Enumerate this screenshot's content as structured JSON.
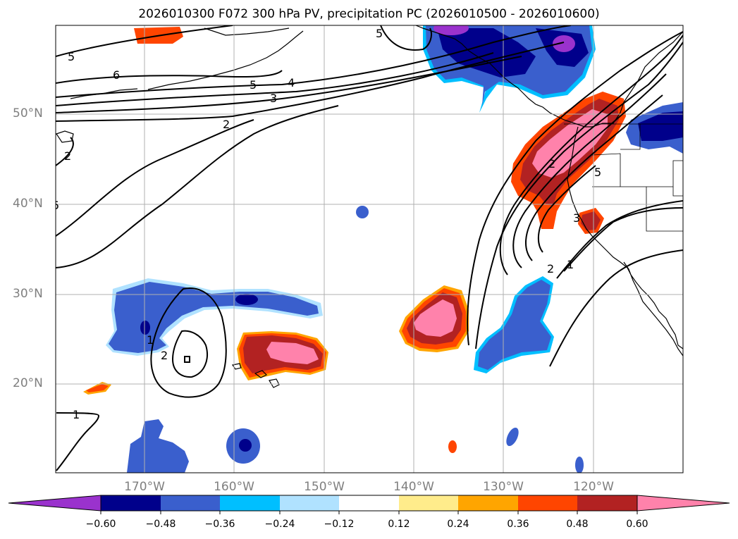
{
  "title": "2026010300 F072 300 hPa PV, precipitation PC (2026010500 - 2026010600)",
  "lat_labels": [
    "50°N",
    "40°N",
    "30°N",
    "20°N"
  ],
  "lon_labels": [
    "170°W",
    "160°W",
    "150°W",
    "140°W",
    "130°W",
    "120°W"
  ],
  "colorbar": {
    "ticks": [
      "−0.60",
      "−0.48",
      "−0.36",
      "−0.24",
      "−0.12",
      "0.12",
      "0.24",
      "0.36",
      "0.48",
      "0.60"
    ],
    "colors": [
      "#9a32cd",
      "#00008b",
      "#3a5fcd",
      "#00bfff",
      "#b0e2ff",
      "#ffffff",
      "#ffec8b",
      "#ffa500",
      "#ff4500",
      "#b22222",
      "#ff82ab"
    ],
    "extend": "both"
  },
  "contour_labels": [
    "5",
    "6",
    "5",
    "4",
    "3",
    "2",
    "2",
    "5",
    "2",
    "1",
    "2",
    "1",
    "5",
    "5",
    "2",
    "1",
    "3"
  ],
  "colors": {
    "coast": "#000000",
    "grid": "#b0b0b0",
    "contour": "#000000"
  }
}
